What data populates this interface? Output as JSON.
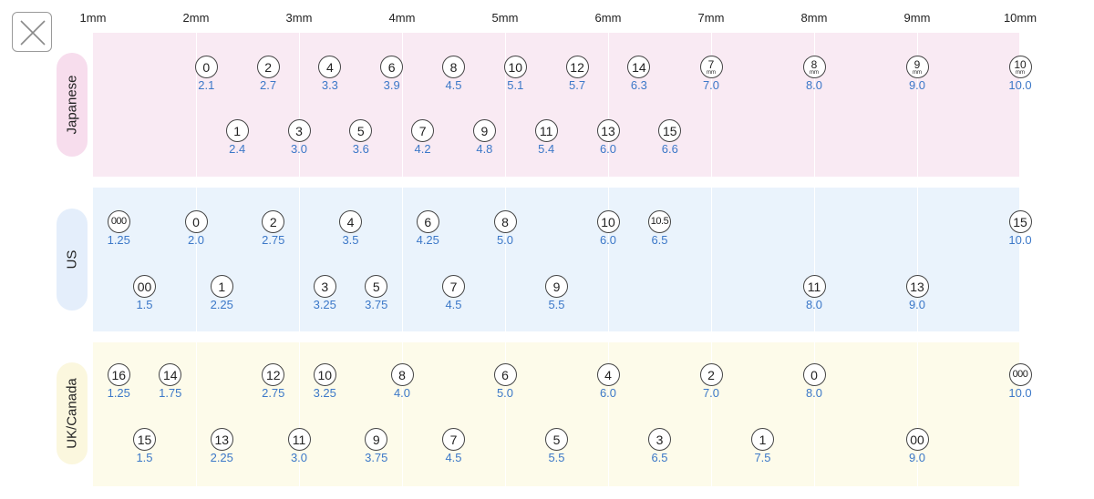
{
  "close_button": {
    "icon": "close-x-icon"
  },
  "axis_labels": [
    "1mm",
    "2mm",
    "3mm",
    "4mm",
    "5mm",
    "6mm",
    "7mm",
    "8mm",
    "9mm",
    "10mm"
  ],
  "colors": {
    "japanese_bg": "#f9eaf3",
    "japanese_tab": "#f7dded",
    "us_bg": "#eaf3fc",
    "us_tab": "#e4eefb",
    "uk_bg": "#fdfbea",
    "uk_tab": "#fbf7de",
    "mm_text": "#3c78c8"
  },
  "sections": [
    {
      "key": "japanese",
      "label": "Japanese",
      "rows": [
        [
          {
            "size": "0",
            "mm": "2.1"
          },
          {
            "size": "2",
            "mm": "2.7"
          },
          {
            "size": "4",
            "mm": "3.3"
          },
          {
            "size": "6",
            "mm": "3.9"
          },
          {
            "size": "8",
            "mm": "4.5"
          },
          {
            "size": "10",
            "mm": "5.1"
          },
          {
            "size": "12",
            "mm": "5.7"
          },
          {
            "size": "14",
            "mm": "6.3"
          },
          {
            "size": "7",
            "unit": "mm",
            "mm": "7.0"
          },
          {
            "size": "8",
            "unit": "mm",
            "mm": "8.0"
          },
          {
            "size": "9",
            "unit": "mm",
            "mm": "9.0"
          },
          {
            "size": "10",
            "unit": "mm",
            "mm": "10.0"
          }
        ],
        [
          {
            "size": "1",
            "mm": "2.4"
          },
          {
            "size": "3",
            "mm": "3.0"
          },
          {
            "size": "5",
            "mm": "3.6"
          },
          {
            "size": "7",
            "mm": "4.2"
          },
          {
            "size": "9",
            "mm": "4.8"
          },
          {
            "size": "11",
            "mm": "5.4"
          },
          {
            "size": "13",
            "mm": "6.0"
          },
          {
            "size": "15",
            "mm": "6.6"
          }
        ]
      ]
    },
    {
      "key": "us",
      "label": "US",
      "rows": [
        [
          {
            "size": "000",
            "mm": "1.25"
          },
          {
            "size": "0",
            "mm": "2.0"
          },
          {
            "size": "2",
            "mm": "2.75"
          },
          {
            "size": "4",
            "mm": "3.5"
          },
          {
            "size": "6",
            "mm": "4.25"
          },
          {
            "size": "8",
            "mm": "5.0"
          },
          {
            "size": "10",
            "mm": "6.0"
          },
          {
            "size": "10.5",
            "mm": "6.5"
          },
          {
            "size": "15",
            "mm": "10.0"
          }
        ],
        [
          {
            "size": "00",
            "mm": "1.5"
          },
          {
            "size": "1",
            "mm": "2.25"
          },
          {
            "size": "3",
            "mm": "3.25"
          },
          {
            "size": "5",
            "mm": "3.75"
          },
          {
            "size": "7",
            "mm": "4.5"
          },
          {
            "size": "9",
            "mm": "5.5"
          },
          {
            "size": "11",
            "mm": "8.0"
          },
          {
            "size": "13",
            "mm": "9.0"
          }
        ]
      ]
    },
    {
      "key": "uk",
      "label": "UK/Canada",
      "rows": [
        [
          {
            "size": "16",
            "mm": "1.25"
          },
          {
            "size": "14",
            "mm": "1.75"
          },
          {
            "size": "12",
            "mm": "2.75"
          },
          {
            "size": "10",
            "mm": "3.25"
          },
          {
            "size": "8",
            "mm": "4.0"
          },
          {
            "size": "6",
            "mm": "5.0"
          },
          {
            "size": "4",
            "mm": "6.0"
          },
          {
            "size": "2",
            "mm": "7.0"
          },
          {
            "size": "0",
            "mm": "8.0"
          },
          {
            "size": "000",
            "mm": "10.0"
          }
        ],
        [
          {
            "size": "15",
            "mm": "1.5"
          },
          {
            "size": "13",
            "mm": "2.25"
          },
          {
            "size": "11",
            "mm": "3.0"
          },
          {
            "size": "9",
            "mm": "3.75"
          },
          {
            "size": "7",
            "mm": "4.5"
          },
          {
            "size": "5",
            "mm": "5.5"
          },
          {
            "size": "3",
            "mm": "6.5"
          },
          {
            "size": "1",
            "mm": "7.5"
          },
          {
            "size": "00",
            "mm": "9.0"
          }
        ]
      ]
    }
  ]
}
